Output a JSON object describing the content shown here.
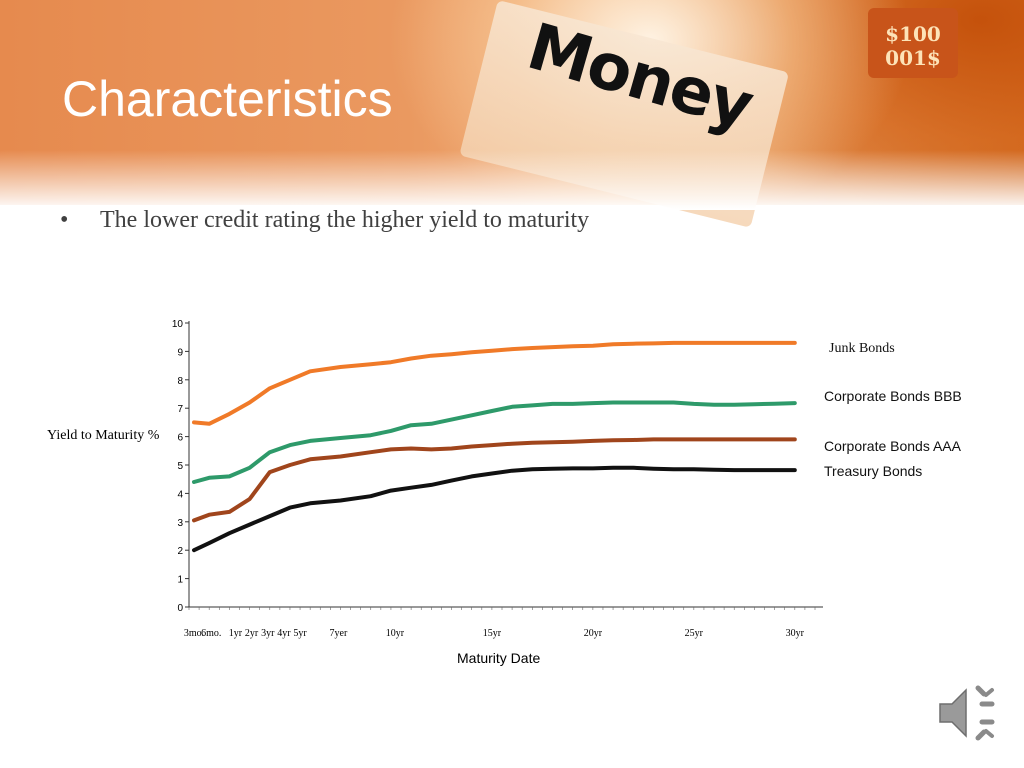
{
  "slide": {
    "title": "Characteristics",
    "bullet": "The lower credit rating the higher yield to maturity",
    "banner_word": "Money",
    "bill_text": [
      "$100",
      "001$"
    ]
  },
  "colors": {
    "junk": "#f07a28",
    "bbb": "#2e9a6a",
    "aaa": "#a0451c",
    "treasury": "#111111",
    "title": "#ffffff",
    "body_text": "#404040"
  },
  "chart_data": {
    "type": "line",
    "xlabel": "Maturity Date",
    "ylabel": "Yield to Maturity %",
    "ylim": [
      0,
      10
    ],
    "xlim": [
      0,
      31
    ],
    "yticks": [
      0,
      1,
      2,
      3,
      4,
      5,
      6,
      7,
      8,
      9,
      10
    ],
    "xtick_labels": [
      {
        "label": "3mo.",
        "x": 0.25
      },
      {
        "label": "6mo.",
        "x": 1.1
      },
      {
        "label": "1yr",
        "x": 2.3
      },
      {
        "label": "2yr",
        "x": 3.1
      },
      {
        "label": "3yr",
        "x": 3.9
      },
      {
        "label": "4yr",
        "x": 4.7
      },
      {
        "label": "5yr",
        "x": 5.5
      },
      {
        "label": "7yer",
        "x": 7.4
      },
      {
        "label": "10yr",
        "x": 10.2
      },
      {
        "label": "15yr",
        "x": 15.0
      },
      {
        "label": "20yr",
        "x": 20.0
      },
      {
        "label": "25yr",
        "x": 25.0
      },
      {
        "label": "30yr",
        "x": 30.0
      }
    ],
    "x": [
      0.25,
      1,
      2,
      3,
      4,
      5,
      6,
      7.5,
      9,
      10,
      11,
      12,
      13,
      14,
      15,
      16,
      17,
      18,
      19,
      20,
      21,
      22,
      23,
      24,
      25,
      26,
      27,
      28,
      29,
      30
    ],
    "series": [
      {
        "name": "Junk Bonds",
        "color": "#f07a28",
        "values": [
          6.5,
          6.45,
          6.8,
          7.2,
          7.7,
          8.0,
          8.3,
          8.45,
          8.55,
          8.62,
          8.75,
          8.85,
          8.9,
          8.97,
          9.02,
          9.08,
          9.12,
          9.15,
          9.18,
          9.2,
          9.25,
          9.27,
          9.28,
          9.3,
          9.3,
          9.3,
          9.3,
          9.3,
          9.3,
          9.3
        ]
      },
      {
        "name": "Corporate Bonds BBB",
        "color": "#2e9a6a",
        "values": [
          4.4,
          4.55,
          4.6,
          4.9,
          5.45,
          5.7,
          5.85,
          5.95,
          6.05,
          6.2,
          6.4,
          6.45,
          6.6,
          6.75,
          6.9,
          7.05,
          7.1,
          7.15,
          7.15,
          7.18,
          7.2,
          7.2,
          7.2,
          7.2,
          7.15,
          7.12,
          7.12,
          7.14,
          7.16,
          7.18
        ]
      },
      {
        "name": "Corporate Bonds AAA",
        "color": "#a0451c",
        "values": [
          3.05,
          3.25,
          3.35,
          3.8,
          4.75,
          5.0,
          5.2,
          5.3,
          5.45,
          5.55,
          5.58,
          5.55,
          5.58,
          5.65,
          5.7,
          5.75,
          5.78,
          5.8,
          5.82,
          5.85,
          5.87,
          5.88,
          5.9,
          5.9,
          5.9,
          5.9,
          5.9,
          5.9,
          5.9,
          5.9
        ]
      },
      {
        "name": "Treasury Bonds",
        "color": "#111111",
        "values": [
          2.0,
          2.25,
          2.6,
          2.9,
          3.2,
          3.5,
          3.65,
          3.75,
          3.9,
          4.1,
          4.2,
          4.3,
          4.45,
          4.6,
          4.7,
          4.8,
          4.85,
          4.87,
          4.88,
          4.88,
          4.9,
          4.9,
          4.87,
          4.85,
          4.85,
          4.83,
          4.82,
          4.82,
          4.82,
          4.82
        ]
      }
    ],
    "legend": [
      "Junk Bonds",
      "Corporate Bonds BBB",
      "Corporate Bonds AAA",
      "Treasury Bonds"
    ],
    "legend_position": "right",
    "grid": false
  }
}
